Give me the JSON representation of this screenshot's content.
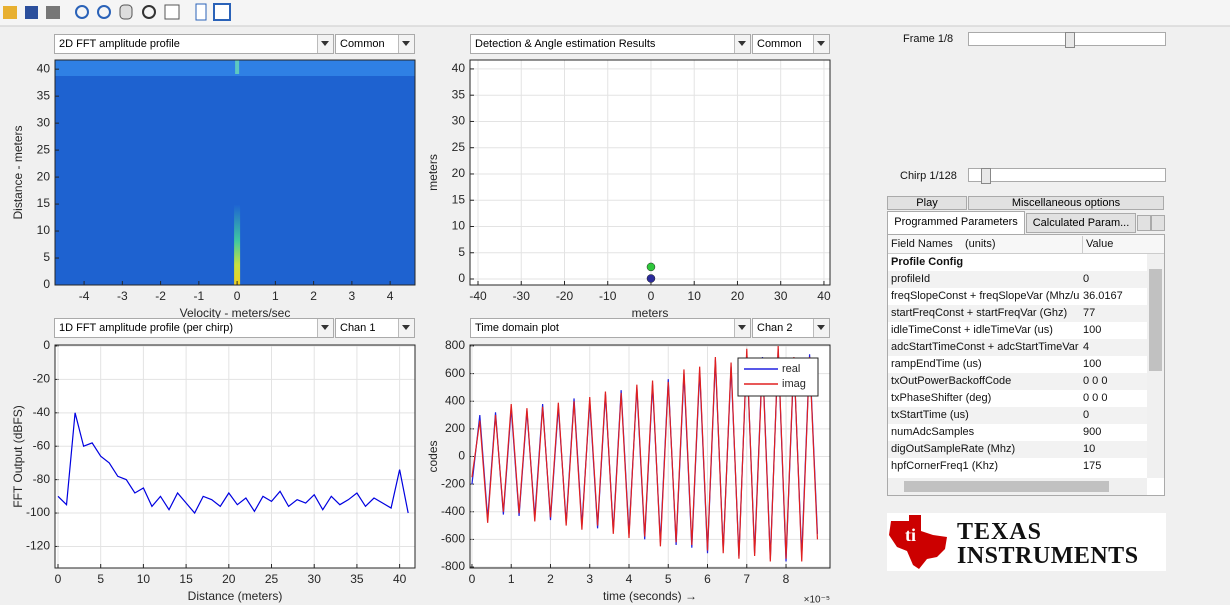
{
  "panels": [
    {
      "dropdown": "2D FFT amplitude profile",
      "selector": "Common",
      "plot": {
        "type": "heatmap",
        "xlabel": "Velocity - meters/sec",
        "ylabel": "Distance - meters",
        "xlim": [
          -4.76,
          4.65
        ],
        "ylim": [
          0,
          41.7
        ],
        "xticks": [
          -4,
          -3,
          -2,
          -1,
          0,
          1,
          2,
          3,
          4
        ],
        "yticks": [
          0,
          5,
          10,
          15,
          20,
          25,
          30,
          35,
          40
        ],
        "grid": false
      }
    },
    {
      "dropdown": "Detection & Angle estimation Results",
      "selector": "Common",
      "plot": {
        "type": "scatter",
        "xlabel": "meters",
        "ylabel": "meters",
        "xlim": [
          -41.85,
          41.4
        ],
        "ylim": [
          -1.14,
          41.7
        ],
        "xticks": [
          -40,
          -30,
          -20,
          -10,
          0,
          10,
          20,
          30,
          40
        ],
        "yticks": [
          0,
          5,
          10,
          15,
          20,
          25,
          30,
          35,
          40
        ],
        "grid": true,
        "points": {
          "x": [
            0,
            0
          ],
          "y": [
            2.3,
            0.1
          ],
          "colors": [
            "#2fc73c",
            "#2b2b9b"
          ]
        }
      }
    },
    {
      "dropdown": "1D FFT amplitude profile (per chirp)",
      "selector": "Chan 1",
      "plot": {
        "type": "line",
        "xlabel": "Distance (meters)",
        "ylabel": "FFT Output (dBFS)",
        "xlim": [
          -0.35,
          41.8
        ],
        "ylim": [
          -132.9,
          0.6
        ],
        "xticks": [
          0,
          5,
          10,
          15,
          20,
          25,
          30,
          35,
          40
        ],
        "yticks": [
          0,
          -20,
          -40,
          -60,
          -80,
          -100,
          -120
        ],
        "grid": true,
        "x": [
          0,
          1,
          2,
          3,
          4,
          5,
          6,
          7,
          8,
          9,
          10,
          11,
          12,
          13,
          14,
          15,
          16,
          17,
          18,
          19,
          20,
          21,
          22,
          23,
          24,
          25,
          26,
          27,
          28,
          29,
          30,
          31,
          32,
          33,
          34,
          35,
          36,
          37,
          38,
          39,
          40,
          41
        ],
        "series": [
          {
            "color": "#0000e0",
            "values": [
              -90,
              -95,
              -40,
              -60,
              -58,
              -66,
              -70,
              -78,
              -80,
              -88,
              -85,
              -96,
              -90,
              -98,
              -88,
              -94,
              -100,
              -90,
              -92,
              -96,
              -88,
              -95,
              -91,
              -99,
              -90,
              -93,
              -87,
              -96,
              -92,
              -94,
              -89,
              -98,
              -90,
              -95,
              -92,
              -88,
              -96,
              -91,
              -94,
              -97,
              -74,
              -100
            ]
          }
        ]
      }
    },
    {
      "dropdown": "Time domain plot",
      "selector": "Chan 2",
      "plot": {
        "type": "line",
        "xlabel": "time  (seconds) →",
        "x_exponent": "×10⁻⁵",
        "ylabel": "codes",
        "xlim": [
          -0.05,
          9.12
        ],
        "ylim": [
          -807,
          807
        ],
        "xticks": [
          0,
          1,
          2,
          3,
          4,
          5,
          6,
          7,
          8
        ],
        "yticks": [
          -800,
          -600,
          -400,
          -200,
          0,
          200,
          400,
          600,
          800
        ],
        "grid": true,
        "legend": "upper right",
        "x": [
          0,
          0.2,
          0.4,
          0.6,
          0.8,
          1,
          1.2,
          1.4,
          1.6,
          1.8,
          2,
          2.2,
          2.4,
          2.6,
          2.8,
          3,
          3.2,
          3.4,
          3.6,
          3.8,
          4,
          4.2,
          4.4,
          4.6,
          4.8,
          5,
          5.2,
          5.4,
          5.6,
          5.8,
          6,
          6.2,
          6.4,
          6.6,
          6.8,
          7,
          7.2,
          7.4,
          7.6,
          7.8,
          8,
          8.2,
          8.4,
          8.6,
          8.8
        ],
        "series": [
          {
            "name": "real",
            "color": "#2020e0",
            "values": [
              -200,
              300,
              -450,
              320,
              -420,
              350,
              -430,
              330,
              -440,
              380,
              -460,
              360,
              -480,
              420,
              -500,
              400,
              -520,
              450,
              -540,
              480,
              -560,
              500,
              -600,
              520,
              -620,
              560,
              -640,
              600,
              -660,
              620,
              -700,
              700,
              -680,
              650,
              -720,
              760,
              -700,
              720,
              -740,
              780,
              -760,
              700,
              -720,
              740,
              -560
            ]
          },
          {
            "name": "imag",
            "color": "#e02020",
            "values": [
              -150,
              260,
              -480,
              300,
              -400,
              380,
              -410,
              350,
              -470,
              360,
              -440,
              390,
              -500,
              400,
              -530,
              430,
              -500,
              470,
              -560,
              460,
              -590,
              520,
              -580,
              550,
              -650,
              540,
              -620,
              630,
              -640,
              650,
              -680,
              720,
              -700,
              680,
              -740,
              780,
              -720,
              700,
              -760,
              800,
              -740,
              720,
              -760,
              720,
              -600
            ]
          }
        ]
      }
    }
  ],
  "frame": "Frame 1/8",
  "chirp": "Chirp 1/128",
  "tabs": {
    "row1": [
      "Play",
      "Miscellaneous options"
    ],
    "row2": [
      "Programmed Parameters",
      "Calculated Param..."
    ]
  },
  "table": {
    "header": [
      "Field Names    (units)",
      "Value"
    ],
    "section": "Profile Config",
    "rows": [
      [
        "profileId",
        "0"
      ],
      [
        "freqSlopeConst + freqSlopeVar (Mhz/us)",
        "36.0167"
      ],
      [
        "startFreqConst + startFreqVar (Ghz)",
        "77"
      ],
      [
        "idleTimeConst + idleTimeVar (us)",
        "100"
      ],
      [
        "adcStartTimeConst + adcStartTimeVar ...",
        "4"
      ],
      [
        "rampEndTime (us)",
        "100"
      ],
      [
        "txOutPowerBackoffCode",
        "0 0 0"
      ],
      [
        "txPhaseShifter (deg)",
        "0 0 0"
      ],
      [
        "txStartTime (us)",
        "0"
      ],
      [
        "numAdcSamples",
        "900"
      ],
      [
        "digOutSampleRate (Mhz)",
        "10"
      ],
      [
        "hpfCornerFreq1 (Khz)",
        "175"
      ]
    ]
  },
  "logo": [
    "TEXAS",
    "INSTRUMENTS"
  ]
}
